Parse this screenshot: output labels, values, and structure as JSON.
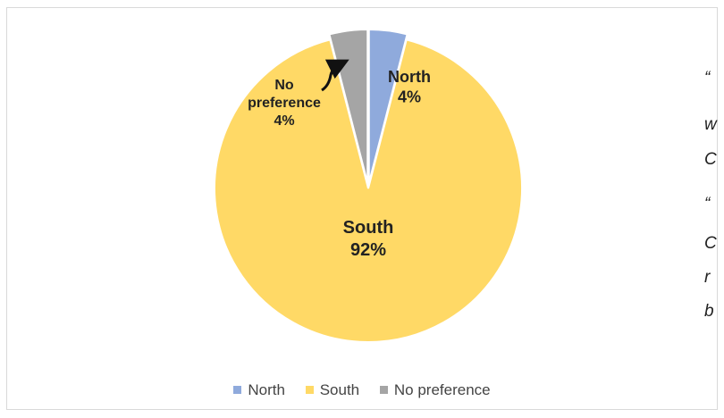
{
  "chart_data": {
    "type": "pie",
    "categories": [
      "North",
      "South",
      "No preference"
    ],
    "values": [
      4,
      92,
      4
    ],
    "labels": [
      "4%",
      "92%",
      "4%"
    ],
    "colors": [
      "#8faadc",
      "#ffd966",
      "#a5a5a5"
    ],
    "legend_position": "bottom"
  },
  "side_text": {
    "lines": [
      "“",
      "w",
      "C",
      "“",
      "C",
      "r",
      "b"
    ]
  }
}
